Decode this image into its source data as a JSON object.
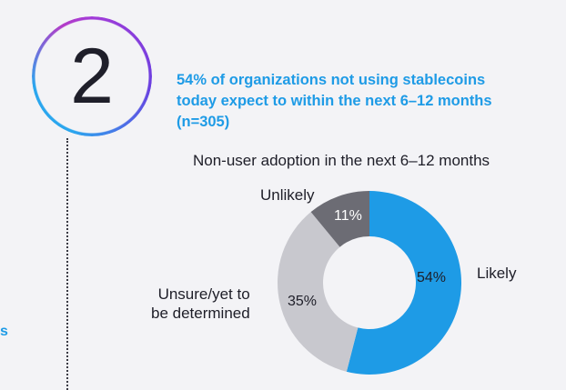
{
  "step_number": "2",
  "side_fragment": "s",
  "headline_lines": [
    "54% of organizations not using stablecoins",
    "today expect to within the next 6–12 months",
    "(n=305)"
  ],
  "colors": {
    "accent_blue": "#1e9be6",
    "likely": "#1e9be6",
    "unsure": "#c8c8ce",
    "unlikely": "#6c6c74"
  },
  "chart_data": {
    "type": "pie",
    "title": "Non-user adoption in the next 6–12 months",
    "donut": true,
    "start": "12 o'clock, clockwise",
    "slices": [
      {
        "label": "Likely",
        "value": 54,
        "value_label": "54%",
        "color": "#1e9be6"
      },
      {
        "label": "Unsure/yet to be determined",
        "value": 35,
        "value_label": "35%",
        "color": "#c8c8ce"
      },
      {
        "label": "Unlikely",
        "value": 11,
        "value_label": "11%",
        "color": "#6c6c74"
      }
    ]
  },
  "labels": {
    "likely": "Likely",
    "unlikely": "Unlikely",
    "unsure_line1": "Unsure/yet to",
    "unsure_line2": "be determined"
  }
}
